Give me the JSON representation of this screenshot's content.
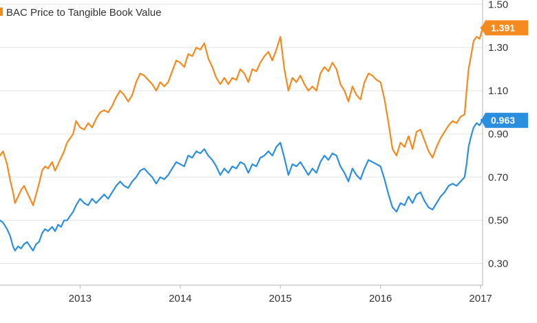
{
  "chart_data": {
    "type": "line",
    "title": "",
    "xlabel": "",
    "ylabel": "",
    "xlim": [
      2012.2,
      2017.02
    ],
    "ylim": [
      0.2,
      1.52
    ],
    "x_ticks": [
      {
        "value": 2013,
        "label": "2013"
      },
      {
        "value": 2014,
        "label": "2014"
      },
      {
        "value": 2015,
        "label": "2015"
      },
      {
        "value": 2016,
        "label": "2016"
      },
      {
        "value": 2017,
        "label": "2017"
      }
    ],
    "y_ticks": [
      {
        "value": 0.3,
        "label": "0.30"
      },
      {
        "value": 0.5,
        "label": "0.50"
      },
      {
        "value": 0.7,
        "label": "0.70"
      },
      {
        "value": 0.9,
        "label": "0.90"
      },
      {
        "value": 1.1,
        "label": "1.10"
      },
      {
        "value": 1.3,
        "label": "1.30"
      },
      {
        "value": 1.5,
        "label": "1.50"
      }
    ],
    "grid": "horizontal",
    "legend_position": "top-left",
    "series": [
      {
        "name": "BAC Price to Tangible Book Value",
        "color": "#f58a1f",
        "last_value_label": "1.391",
        "points": [
          [
            2012.2,
            0.8
          ],
          [
            2012.23,
            0.82
          ],
          [
            2012.27,
            0.76
          ],
          [
            2012.3,
            0.69
          ],
          [
            2012.33,
            0.63
          ],
          [
            2012.35,
            0.58
          ],
          [
            2012.38,
            0.61
          ],
          [
            2012.41,
            0.64
          ],
          [
            2012.44,
            0.66
          ],
          [
            2012.47,
            0.63
          ],
          [
            2012.5,
            0.6
          ],
          [
            2012.53,
            0.57
          ],
          [
            2012.56,
            0.62
          ],
          [
            2012.59,
            0.67
          ],
          [
            2012.62,
            0.73
          ],
          [
            2012.65,
            0.75
          ],
          [
            2012.68,
            0.74
          ],
          [
            2012.72,
            0.77
          ],
          [
            2012.75,
            0.73
          ],
          [
            2012.78,
            0.76
          ],
          [
            2012.81,
            0.79
          ],
          [
            2012.84,
            0.82
          ],
          [
            2012.87,
            0.86
          ],
          [
            2012.9,
            0.88
          ],
          [
            2012.93,
            0.9
          ],
          [
            2012.96,
            0.96
          ],
          [
            2013.0,
            0.93
          ],
          [
            2013.04,
            0.92
          ],
          [
            2013.08,
            0.95
          ],
          [
            2013.12,
            0.93
          ],
          [
            2013.16,
            0.97
          ],
          [
            2013.2,
            1.0
          ],
          [
            2013.24,
            1.01
          ],
          [
            2013.28,
            1.0
          ],
          [
            2013.32,
            1.03
          ],
          [
            2013.36,
            1.07
          ],
          [
            2013.4,
            1.1
          ],
          [
            2013.44,
            1.08
          ],
          [
            2013.48,
            1.05
          ],
          [
            2013.52,
            1.08
          ],
          [
            2013.56,
            1.14
          ],
          [
            2013.6,
            1.18
          ],
          [
            2013.64,
            1.17
          ],
          [
            2013.68,
            1.15
          ],
          [
            2013.72,
            1.13
          ],
          [
            2013.76,
            1.1
          ],
          [
            2013.8,
            1.14
          ],
          [
            2013.84,
            1.12
          ],
          [
            2013.88,
            1.14
          ],
          [
            2013.92,
            1.19
          ],
          [
            2013.96,
            1.24
          ],
          [
            2014.0,
            1.23
          ],
          [
            2014.04,
            1.21
          ],
          [
            2014.08,
            1.27
          ],
          [
            2014.12,
            1.26
          ],
          [
            2014.16,
            1.3
          ],
          [
            2014.2,
            1.29
          ],
          [
            2014.24,
            1.32
          ],
          [
            2014.28,
            1.25
          ],
          [
            2014.32,
            1.21
          ],
          [
            2014.36,
            1.16
          ],
          [
            2014.4,
            1.13
          ],
          [
            2014.44,
            1.16
          ],
          [
            2014.48,
            1.13
          ],
          [
            2014.52,
            1.16
          ],
          [
            2014.56,
            1.15
          ],
          [
            2014.6,
            1.2
          ],
          [
            2014.64,
            1.18
          ],
          [
            2014.68,
            1.14
          ],
          [
            2014.72,
            1.2
          ],
          [
            2014.76,
            1.19
          ],
          [
            2014.8,
            1.23
          ],
          [
            2014.84,
            1.26
          ],
          [
            2014.88,
            1.28
          ],
          [
            2014.92,
            1.24
          ],
          [
            2014.96,
            1.29
          ],
          [
            2015.0,
            1.35
          ],
          [
            2015.04,
            1.2
          ],
          [
            2015.08,
            1.1
          ],
          [
            2015.12,
            1.16
          ],
          [
            2015.16,
            1.14
          ],
          [
            2015.2,
            1.17
          ],
          [
            2015.24,
            1.13
          ],
          [
            2015.28,
            1.1
          ],
          [
            2015.32,
            1.12
          ],
          [
            2015.36,
            1.1
          ],
          [
            2015.4,
            1.18
          ],
          [
            2015.44,
            1.21
          ],
          [
            2015.48,
            1.19
          ],
          [
            2015.52,
            1.23
          ],
          [
            2015.56,
            1.2
          ],
          [
            2015.6,
            1.13
          ],
          [
            2015.64,
            1.1
          ],
          [
            2015.68,
            1.05
          ],
          [
            2015.72,
            1.12
          ],
          [
            2015.76,
            1.08
          ],
          [
            2015.8,
            1.06
          ],
          [
            2015.84,
            1.14
          ],
          [
            2015.88,
            1.18
          ],
          [
            2015.92,
            1.17
          ],
          [
            2015.96,
            1.15
          ],
          [
            2016.0,
            1.14
          ],
          [
            2016.04,
            1.06
          ],
          [
            2016.08,
            0.95
          ],
          [
            2016.12,
            0.83
          ],
          [
            2016.16,
            0.8
          ],
          [
            2016.2,
            0.86
          ],
          [
            2016.24,
            0.84
          ],
          [
            2016.28,
            0.89
          ],
          [
            2016.32,
            0.83
          ],
          [
            2016.36,
            0.91
          ],
          [
            2016.4,
            0.92
          ],
          [
            2016.44,
            0.87
          ],
          [
            2016.48,
            0.82
          ],
          [
            2016.52,
            0.79
          ],
          [
            2016.56,
            0.84
          ],
          [
            2016.6,
            0.88
          ],
          [
            2016.64,
            0.91
          ],
          [
            2016.68,
            0.94
          ],
          [
            2016.72,
            0.96
          ],
          [
            2016.76,
            0.95
          ],
          [
            2016.8,
            0.98
          ],
          [
            2016.84,
            0.99
          ],
          [
            2016.86,
            1.1
          ],
          [
            2016.88,
            1.2
          ],
          [
            2016.9,
            1.25
          ],
          [
            2016.93,
            1.33
          ],
          [
            2016.96,
            1.35
          ],
          [
            2016.99,
            1.34
          ],
          [
            2017.02,
            1.391
          ]
        ]
      },
      {
        "name": "",
        "color": "#2b8fe0",
        "last_value_label": "0.963",
        "points": [
          [
            2012.2,
            0.5
          ],
          [
            2012.23,
            0.49
          ],
          [
            2012.27,
            0.46
          ],
          [
            2012.3,
            0.43
          ],
          [
            2012.33,
            0.38
          ],
          [
            2012.35,
            0.36
          ],
          [
            2012.38,
            0.38
          ],
          [
            2012.41,
            0.37
          ],
          [
            2012.44,
            0.39
          ],
          [
            2012.47,
            0.4
          ],
          [
            2012.5,
            0.38
          ],
          [
            2012.53,
            0.36
          ],
          [
            2012.56,
            0.39
          ],
          [
            2012.59,
            0.4
          ],
          [
            2012.62,
            0.44
          ],
          [
            2012.65,
            0.46
          ],
          [
            2012.68,
            0.45
          ],
          [
            2012.72,
            0.47
          ],
          [
            2012.75,
            0.45
          ],
          [
            2012.78,
            0.48
          ],
          [
            2012.81,
            0.47
          ],
          [
            2012.84,
            0.5
          ],
          [
            2012.87,
            0.5
          ],
          [
            2012.9,
            0.52
          ],
          [
            2012.93,
            0.54
          ],
          [
            2012.96,
            0.57
          ],
          [
            2013.0,
            0.6
          ],
          [
            2013.04,
            0.58
          ],
          [
            2013.08,
            0.57
          ],
          [
            2013.12,
            0.6
          ],
          [
            2013.16,
            0.58
          ],
          [
            2013.2,
            0.6
          ],
          [
            2013.24,
            0.62
          ],
          [
            2013.28,
            0.6
          ],
          [
            2013.32,
            0.63
          ],
          [
            2013.36,
            0.66
          ],
          [
            2013.4,
            0.68
          ],
          [
            2013.44,
            0.66
          ],
          [
            2013.48,
            0.65
          ],
          [
            2013.52,
            0.68
          ],
          [
            2013.56,
            0.7
          ],
          [
            2013.6,
            0.73
          ],
          [
            2013.64,
            0.74
          ],
          [
            2013.68,
            0.72
          ],
          [
            2013.72,
            0.7
          ],
          [
            2013.76,
            0.67
          ],
          [
            2013.8,
            0.7
          ],
          [
            2013.84,
            0.69
          ],
          [
            2013.88,
            0.71
          ],
          [
            2013.92,
            0.74
          ],
          [
            2013.96,
            0.77
          ],
          [
            2014.0,
            0.76
          ],
          [
            2014.04,
            0.75
          ],
          [
            2014.08,
            0.8
          ],
          [
            2014.12,
            0.79
          ],
          [
            2014.16,
            0.82
          ],
          [
            2014.2,
            0.81
          ],
          [
            2014.24,
            0.83
          ],
          [
            2014.28,
            0.8
          ],
          [
            2014.32,
            0.78
          ],
          [
            2014.36,
            0.75
          ],
          [
            2014.4,
            0.71
          ],
          [
            2014.44,
            0.74
          ],
          [
            2014.48,
            0.72
          ],
          [
            2014.52,
            0.75
          ],
          [
            2014.56,
            0.74
          ],
          [
            2014.6,
            0.77
          ],
          [
            2014.64,
            0.76
          ],
          [
            2014.68,
            0.72
          ],
          [
            2014.72,
            0.76
          ],
          [
            2014.76,
            0.75
          ],
          [
            2014.8,
            0.79
          ],
          [
            2014.84,
            0.8
          ],
          [
            2014.88,
            0.82
          ],
          [
            2014.92,
            0.8
          ],
          [
            2014.96,
            0.84
          ],
          [
            2015.0,
            0.86
          ],
          [
            2015.04,
            0.79
          ],
          [
            2015.08,
            0.71
          ],
          [
            2015.12,
            0.76
          ],
          [
            2015.16,
            0.75
          ],
          [
            2015.2,
            0.77
          ],
          [
            2015.24,
            0.74
          ],
          [
            2015.28,
            0.71
          ],
          [
            2015.32,
            0.74
          ],
          [
            2015.36,
            0.72
          ],
          [
            2015.4,
            0.77
          ],
          [
            2015.44,
            0.8
          ],
          [
            2015.48,
            0.78
          ],
          [
            2015.52,
            0.81
          ],
          [
            2015.56,
            0.8
          ],
          [
            2015.6,
            0.75
          ],
          [
            2015.64,
            0.72
          ],
          [
            2015.68,
            0.68
          ],
          [
            2015.72,
            0.74
          ],
          [
            2015.76,
            0.71
          ],
          [
            2015.8,
            0.69
          ],
          [
            2015.84,
            0.74
          ],
          [
            2015.88,
            0.78
          ],
          [
            2015.92,
            0.77
          ],
          [
            2015.96,
            0.76
          ],
          [
            2016.0,
            0.75
          ],
          [
            2016.04,
            0.69
          ],
          [
            2016.08,
            0.62
          ],
          [
            2016.12,
            0.56
          ],
          [
            2016.16,
            0.54
          ],
          [
            2016.2,
            0.58
          ],
          [
            2016.24,
            0.57
          ],
          [
            2016.28,
            0.61
          ],
          [
            2016.32,
            0.58
          ],
          [
            2016.36,
            0.62
          ],
          [
            2016.4,
            0.63
          ],
          [
            2016.44,
            0.59
          ],
          [
            2016.48,
            0.56
          ],
          [
            2016.52,
            0.55
          ],
          [
            2016.56,
            0.58
          ],
          [
            2016.6,
            0.61
          ],
          [
            2016.64,
            0.63
          ],
          [
            2016.68,
            0.66
          ],
          [
            2016.72,
            0.67
          ],
          [
            2016.76,
            0.66
          ],
          [
            2016.8,
            0.68
          ],
          [
            2016.84,
            0.7
          ],
          [
            2016.86,
            0.76
          ],
          [
            2016.88,
            0.84
          ],
          [
            2016.9,
            0.88
          ],
          [
            2016.93,
            0.93
          ],
          [
            2016.96,
            0.95
          ],
          [
            2016.99,
            0.94
          ],
          [
            2017.02,
            0.963
          ]
        ]
      }
    ]
  }
}
